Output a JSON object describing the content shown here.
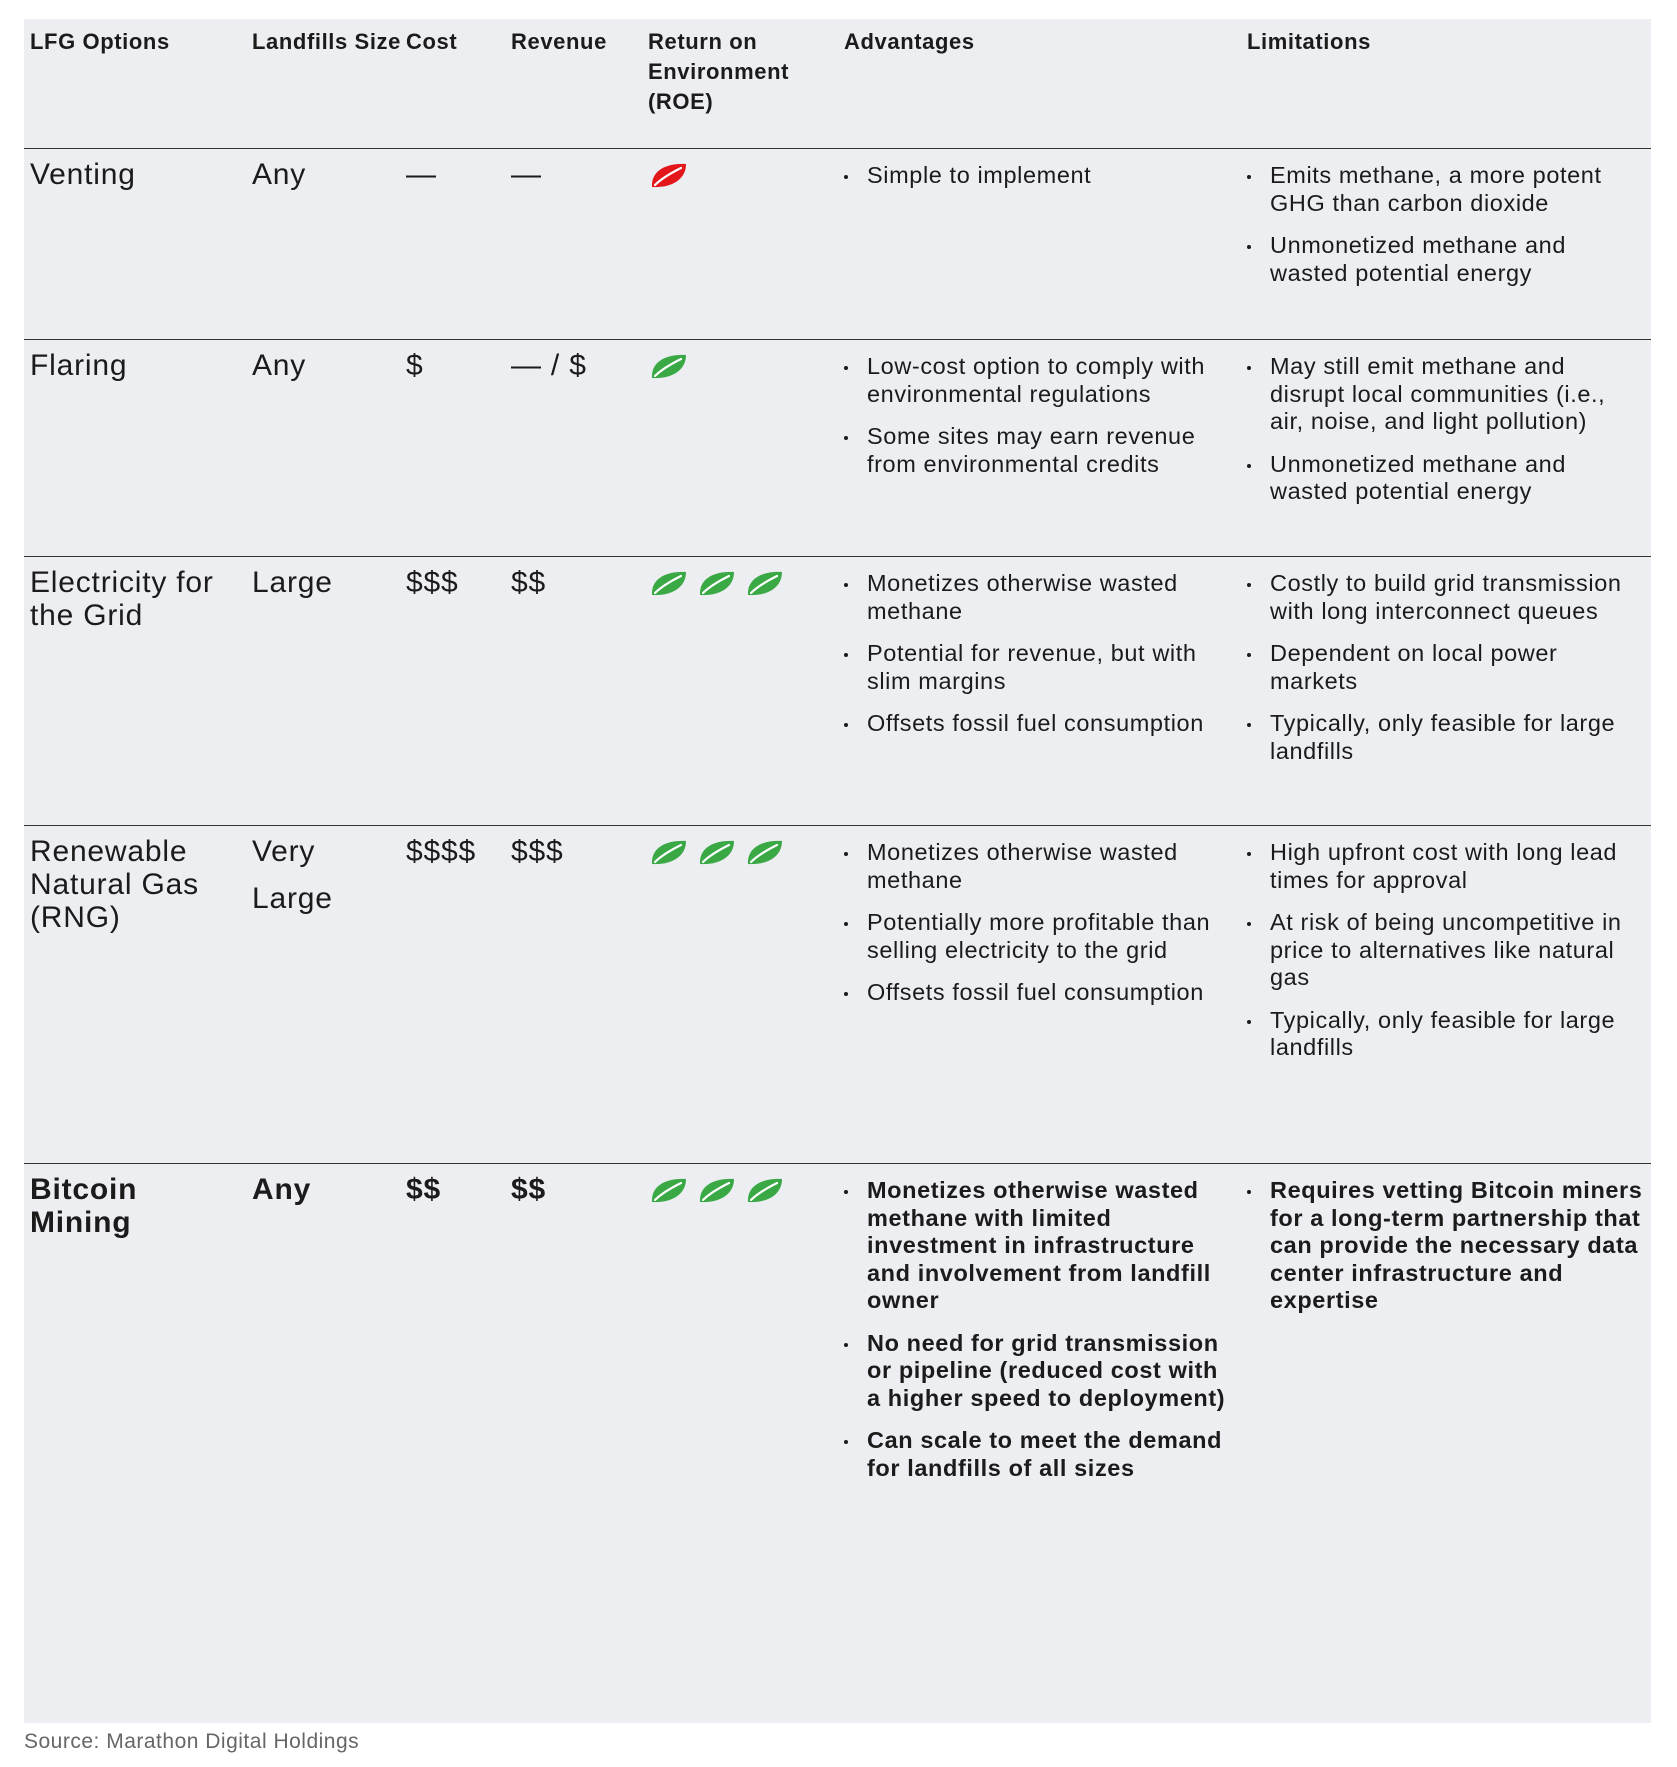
{
  "table": {
    "columns": [
      "LFG Options",
      "Landfills Size",
      "Cost",
      "Revenue",
      "Return on Environment (ROE)",
      "Advantages",
      "Limitations"
    ],
    "rows": [
      {
        "option": "Venting",
        "size": "Any",
        "cost": "—",
        "revenue": "—",
        "roe": 1,
        "roe_color": "#e3161c",
        "advantages": [
          "Simple to implement"
        ],
        "limitations": [
          "Emits methane, a more potent GHG than carbon dioxide",
          "Unmonetized methane and wasted potential energy"
        ]
      },
      {
        "option": "Flaring",
        "size": "Any",
        "cost": "$",
        "revenue": "— / $",
        "roe": 1,
        "roe_color": "#3aa845",
        "advantages": [
          "Low-cost option to comply with environmental regulations",
          "Some sites may earn revenue from environmental credits"
        ],
        "limitations": [
          "May still emit methane and disrupt local communities (i.e., air, noise, and light pollution)",
          "Unmonetized methane and wasted potential energy"
        ]
      },
      {
        "option": "Electricity for the Grid",
        "size": "Large",
        "cost": "$$$",
        "revenue": "$$",
        "roe": 3,
        "roe_color": "#3aa845",
        "advantages": [
          "Monetizes otherwise wasted methane",
          "Potential for revenue, but with slim margins",
          "Offsets fossil fuel consumption"
        ],
        "limitations": [
          "Costly to build grid transmission with long interconnect queues",
          "Dependent on local power markets",
          "Typically, only feasible for large landfills"
        ]
      },
      {
        "option": "Renewable Natural Gas (RNG)",
        "size": "Very Large",
        "cost": "$$$$",
        "revenue": "$$$",
        "roe": 3,
        "roe_color": "#3aa845",
        "advantages": [
          "Monetizes otherwise wasted methane",
          "Potentially more profitable than selling electricity to the grid",
          "Offsets fossil fuel consumption"
        ],
        "limitations": [
          "High upfront cost with long lead times for approval",
          "At risk of being uncompetitive in price to alternatives like natural gas",
          "Typically, only feasible for large landfills"
        ]
      },
      {
        "option": "Bitcoin Mining",
        "size": "Any",
        "cost": "$$",
        "revenue": "$$",
        "roe": 3,
        "roe_color": "#3aa845",
        "bold": true,
        "advantages": [
          "Monetizes otherwise wasted methane with limited investment in infrastructure and involvement from landfill owner",
          "No need for grid transmission or pipeline (reduced cost with a higher speed to deployment)",
          "Can scale to meet the demand for landfills of all sizes"
        ],
        "limitations": [
          "Requires vetting Bitcoin miners for a long-term partnership that can provide the necessary data center infrastructure and expertise"
        ]
      }
    ]
  },
  "source": "Source: Marathon Digital Holdings"
}
